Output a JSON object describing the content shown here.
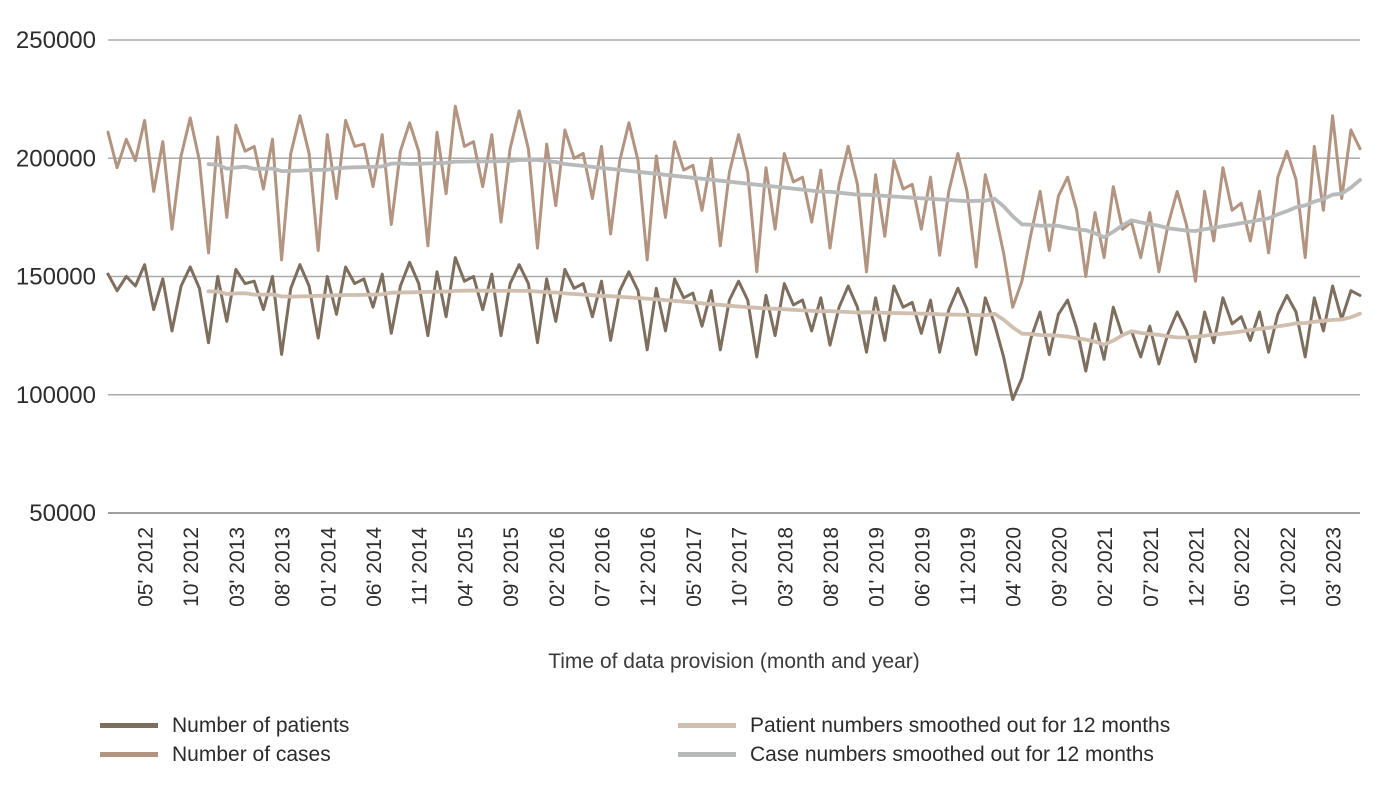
{
  "chart_data": {
    "type": "line",
    "title": "",
    "xlabel": "Time of data provision (month and year)",
    "ylabel": "",
    "grid": "horizontal",
    "legend_position": "bottom",
    "y_ticks": [
      250000,
      200000,
      150000,
      100000,
      50000
    ],
    "ylim": [
      50000,
      255000
    ],
    "x_start": "01' 2012",
    "x_end": "06' 2023",
    "x_interval": "monthly",
    "x_tick_step_months": 5,
    "x_tick_first_index": 4,
    "x_tick_labels": [
      "05' 2012",
      "10' 2012",
      "03' 2013",
      "08' 2013",
      "01' 2014",
      "06' 2014",
      "11' 2014",
      "04' 2015",
      "09' 2015",
      "02' 2016",
      "07' 2016",
      "12' 2016",
      "05' 2017",
      "10' 2017",
      "03' 2018",
      "08' 2018",
      "01' 2019",
      "06' 2019",
      "11' 2019",
      "04' 2020",
      "09' 2020",
      "02' 2021",
      "07' 2021",
      "12' 2021",
      "05' 2022",
      "10' 2022",
      "03' 2023"
    ],
    "series": [
      {
        "name": "Number of patients",
        "color": "#7e6e5e",
        "kind": "raw",
        "values": [
          151000,
          144000,
          150000,
          146000,
          155000,
          136000,
          149000,
          127000,
          146000,
          154000,
          145000,
          122000,
          150000,
          131000,
          153000,
          147000,
          148000,
          136000,
          150000,
          117000,
          145000,
          155000,
          146000,
          124000,
          150000,
          134000,
          154000,
          147000,
          149000,
          137000,
          151000,
          126000,
          146000,
          156000,
          147000,
          125000,
          152000,
          133000,
          158000,
          148000,
          150000,
          136000,
          151000,
          125000,
          147000,
          155000,
          147000,
          122000,
          149000,
          131000,
          153000,
          145000,
          147000,
          133000,
          148000,
          123000,
          144000,
          152000,
          144000,
          119000,
          145000,
          127000,
          149000,
          141000,
          143000,
          129000,
          144000,
          119000,
          140000,
          148000,
          140000,
          116000,
          142000,
          125000,
          147000,
          138000,
          140000,
          127000,
          141000,
          121000,
          137000,
          146000,
          137000,
          118000,
          141000,
          123000,
          146000,
          137000,
          139000,
          126000,
          140000,
          118000,
          136000,
          145000,
          136000,
          117000,
          141000,
          130000,
          116000,
          98000,
          107000,
          124000,
          135000,
          117000,
          134000,
          140000,
          128000,
          110000,
          130000,
          115000,
          137000,
          125000,
          127000,
          116000,
          129000,
          113000,
          126000,
          135000,
          127000,
          114000,
          135000,
          122000,
          141000,
          130000,
          133000,
          123000,
          135000,
          118000,
          134000,
          142000,
          135000,
          116000,
          141000,
          127000,
          146000,
          132000,
          144000,
          142000
        ]
      },
      {
        "name": "Number of cases",
        "color": "#b29480",
        "kind": "raw",
        "values": [
          211000,
          196000,
          208000,
          199000,
          216000,
          186000,
          207000,
          170000,
          201000,
          217000,
          199000,
          160000,
          209000,
          175000,
          214000,
          203000,
          205000,
          187000,
          208000,
          157000,
          202000,
          218000,
          202000,
          161000,
          210000,
          183000,
          216000,
          205000,
          206000,
          188000,
          210000,
          172000,
          203000,
          215000,
          203000,
          163000,
          211000,
          185000,
          222000,
          205000,
          207000,
          188000,
          210000,
          173000,
          204000,
          220000,
          204000,
          162000,
          206000,
          180000,
          212000,
          200000,
          202000,
          183000,
          205000,
          168000,
          199000,
          215000,
          199000,
          157000,
          201000,
          175000,
          207000,
          195000,
          197000,
          178000,
          200000,
          163000,
          194000,
          210000,
          194000,
          152000,
          196000,
          170000,
          202000,
          190000,
          192000,
          173000,
          195000,
          162000,
          189000,
          205000,
          189000,
          152000,
          193000,
          167000,
          199000,
          187000,
          189000,
          170000,
          192000,
          159000,
          186000,
          202000,
          186000,
          154000,
          193000,
          178000,
          160000,
          137000,
          148000,
          168000,
          186000,
          161000,
          184000,
          192000,
          178000,
          150000,
          177000,
          158000,
          188000,
          170000,
          173000,
          158000,
          177000,
          152000,
          172000,
          186000,
          172000,
          148000,
          186000,
          165000,
          196000,
          178000,
          181000,
          165000,
          186000,
          160000,
          192000,
          203000,
          191000,
          158000,
          205000,
          178000,
          218000,
          183000,
          212000,
          204000
        ]
      },
      {
        "name": "Patient numbers smoothed out for 12 months",
        "color": "#d0bfaf",
        "kind": "smoothed",
        "derived_from": "Number of patients",
        "window_months": 12
      },
      {
        "name": "Case numbers smoothed out for 12 months",
        "color": "#b7bab9",
        "kind": "smoothed",
        "derived_from": "Number of cases",
        "window_months": 12
      }
    ]
  }
}
